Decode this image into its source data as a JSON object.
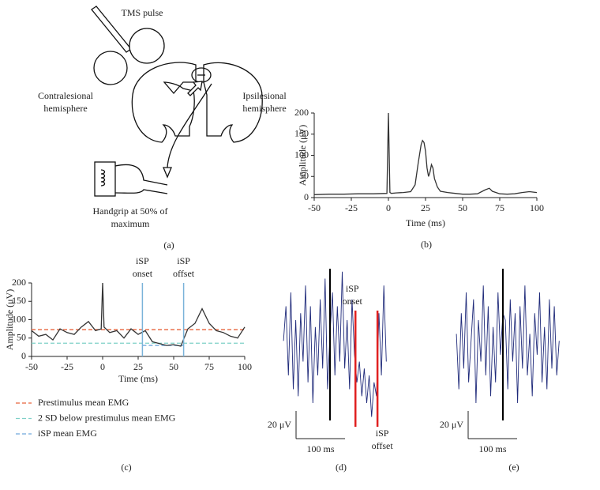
{
  "diagram": {
    "caption": "(a)",
    "coil_label": "TMS pulse",
    "left_label": "Contralesional hemisphere",
    "right_label": "Ipsilesional hemisphere",
    "hand_label": "Handgrip at 50% of maximum"
  },
  "chart_data": [
    {
      "type": "line",
      "caption": "(b)",
      "xlabel": "Time (ms)",
      "ylabel": "Amplitude (μV)",
      "color": "#333333",
      "xlim": [
        -50,
        100
      ],
      "xticks": [
        -50,
        -25,
        0,
        25,
        50,
        75,
        100
      ],
      "ylim": [
        0,
        200
      ],
      "yticks": [
        0,
        50,
        100,
        150,
        200
      ],
      "x": [
        -50,
        -40,
        -30,
        -20,
        -10,
        -1,
        0,
        0.5,
        1,
        2,
        5,
        10,
        15,
        18,
        20,
        22,
        23,
        24,
        25,
        26,
        27,
        28,
        29,
        30,
        31,
        33,
        35,
        40,
        45,
        50,
        55,
        60,
        65,
        68,
        70,
        75,
        80,
        85,
        90,
        95,
        100
      ],
      "values": [
        7,
        8,
        8,
        9,
        9,
        10,
        200,
        110,
        12,
        10,
        11,
        12,
        14,
        30,
        80,
        125,
        135,
        130,
        110,
        70,
        50,
        60,
        78,
        70,
        45,
        25,
        15,
        12,
        10,
        8,
        8,
        9,
        18,
        22,
        15,
        9,
        8,
        9,
        12,
        14,
        12
      ]
    },
    {
      "type": "line",
      "caption": "(c)",
      "xlabel": "Time (ms)",
      "ylabel": "Amplitude (μV)",
      "color": "#333333",
      "xlim": [
        -50,
        100
      ],
      "xticks": [
        -50,
        -25,
        0,
        25,
        50,
        75,
        100
      ],
      "ylim": [
        0,
        200
      ],
      "yticks": [
        0,
        50,
        100,
        150,
        200
      ],
      "x": [
        -50,
        -45,
        -40,
        -35,
        -30,
        -25,
        -20,
        -15,
        -10,
        -5,
        -1,
        0,
        1,
        5,
        10,
        15,
        20,
        25,
        30,
        35,
        40,
        45,
        50,
        55,
        60,
        65,
        70,
        75,
        80,
        85,
        90,
        95,
        100
      ],
      "values": [
        70,
        55,
        60,
        45,
        75,
        65,
        60,
        80,
        95,
        70,
        75,
        200,
        80,
        65,
        70,
        50,
        75,
        60,
        70,
        40,
        35,
        30,
        32,
        28,
        75,
        90,
        130,
        90,
        70,
        65,
        55,
        50,
        80
      ],
      "reference_lines": [
        {
          "name": "Prestimulus mean EMG",
          "color": "#e8643c",
          "y": 73,
          "x": [
            -50,
            100
          ]
        },
        {
          "name": "2 SD below prestimulus mean EMG",
          "color": "#7fd0c8",
          "y": 36,
          "x": [
            -50,
            100
          ]
        },
        {
          "name": "iSP mean EMG",
          "color": "#6fa8dc",
          "y": 30,
          "x": [
            28,
            57
          ]
        }
      ],
      "events": [
        {
          "label": "iSP onset",
          "x": 28,
          "color": "#7ab3d9"
        },
        {
          "label": "iSP offset",
          "x": 57,
          "color": "#7ab3d9"
        }
      ]
    },
    {
      "type": "trace",
      "caption": "(d)",
      "color": "#1f2a7a",
      "x": [
        -95,
        -90,
        -85,
        -80,
        -75,
        -70,
        -65,
        -60,
        -55,
        -50,
        -45,
        -40,
        -35,
        -30,
        -25,
        -20,
        -15,
        -10,
        -5,
        0,
        5,
        10,
        15,
        20,
        25,
        30,
        35,
        40,
        45,
        50,
        55,
        60,
        65,
        70,
        75,
        80,
        85,
        90,
        95,
        100,
        105,
        110,
        115
      ],
      "values": [
        5,
        30,
        -20,
        40,
        -30,
        20,
        -35,
        25,
        -10,
        45,
        -25,
        30,
        -40,
        15,
        -20,
        35,
        -15,
        50,
        -30,
        10,
        40,
        -20,
        30,
        -10,
        55,
        -15,
        20,
        -30,
        35,
        -5,
        -25,
        -10,
        -35,
        -15,
        -40,
        -20,
        -50,
        -25,
        -35,
        25,
        -20,
        45,
        -10
      ],
      "stimulus": {
        "x": 0,
        "color": "#000000"
      },
      "events": [
        {
          "label": "iSP onset",
          "x": 52,
          "color": "#e02020",
          "label_position": "above"
        },
        {
          "label": "iSP offset",
          "x": 97,
          "color": "#e02020",
          "label_position": "below"
        }
      ],
      "scale_bar": {
        "y": 20,
        "y_label": "20 μV",
        "x": 100,
        "x_label": "100 ms"
      }
    },
    {
      "type": "trace",
      "caption": "(e)",
      "color": "#1f2a7a",
      "x": [
        -95,
        -90,
        -85,
        -80,
        -75,
        -70,
        -65,
        -60,
        -55,
        -50,
        -45,
        -40,
        -35,
        -30,
        -25,
        -20,
        -15,
        -10,
        -5,
        0,
        5,
        10,
        15,
        20,
        25,
        30,
        35,
        40,
        45,
        50,
        55,
        60,
        65,
        70,
        75,
        80,
        85,
        90,
        95,
        100,
        105,
        110,
        115
      ],
      "values": [
        10,
        -30,
        25,
        -15,
        40,
        -25,
        5,
        35,
        -40,
        20,
        -10,
        45,
        -20,
        30,
        -35,
        15,
        -25,
        40,
        -5,
        25,
        20,
        -30,
        35,
        -10,
        25,
        -40,
        30,
        -15,
        45,
        -20,
        10,
        -35,
        25,
        -5,
        40,
        -25,
        15,
        -30,
        35,
        -15,
        30,
        -20,
        5
      ],
      "stimulus": {
        "x": 0,
        "color": "#000000"
      },
      "events": [],
      "scale_bar": {
        "y": 20,
        "y_label": "20 μV",
        "x": 100,
        "x_label": "100 ms"
      }
    }
  ]
}
